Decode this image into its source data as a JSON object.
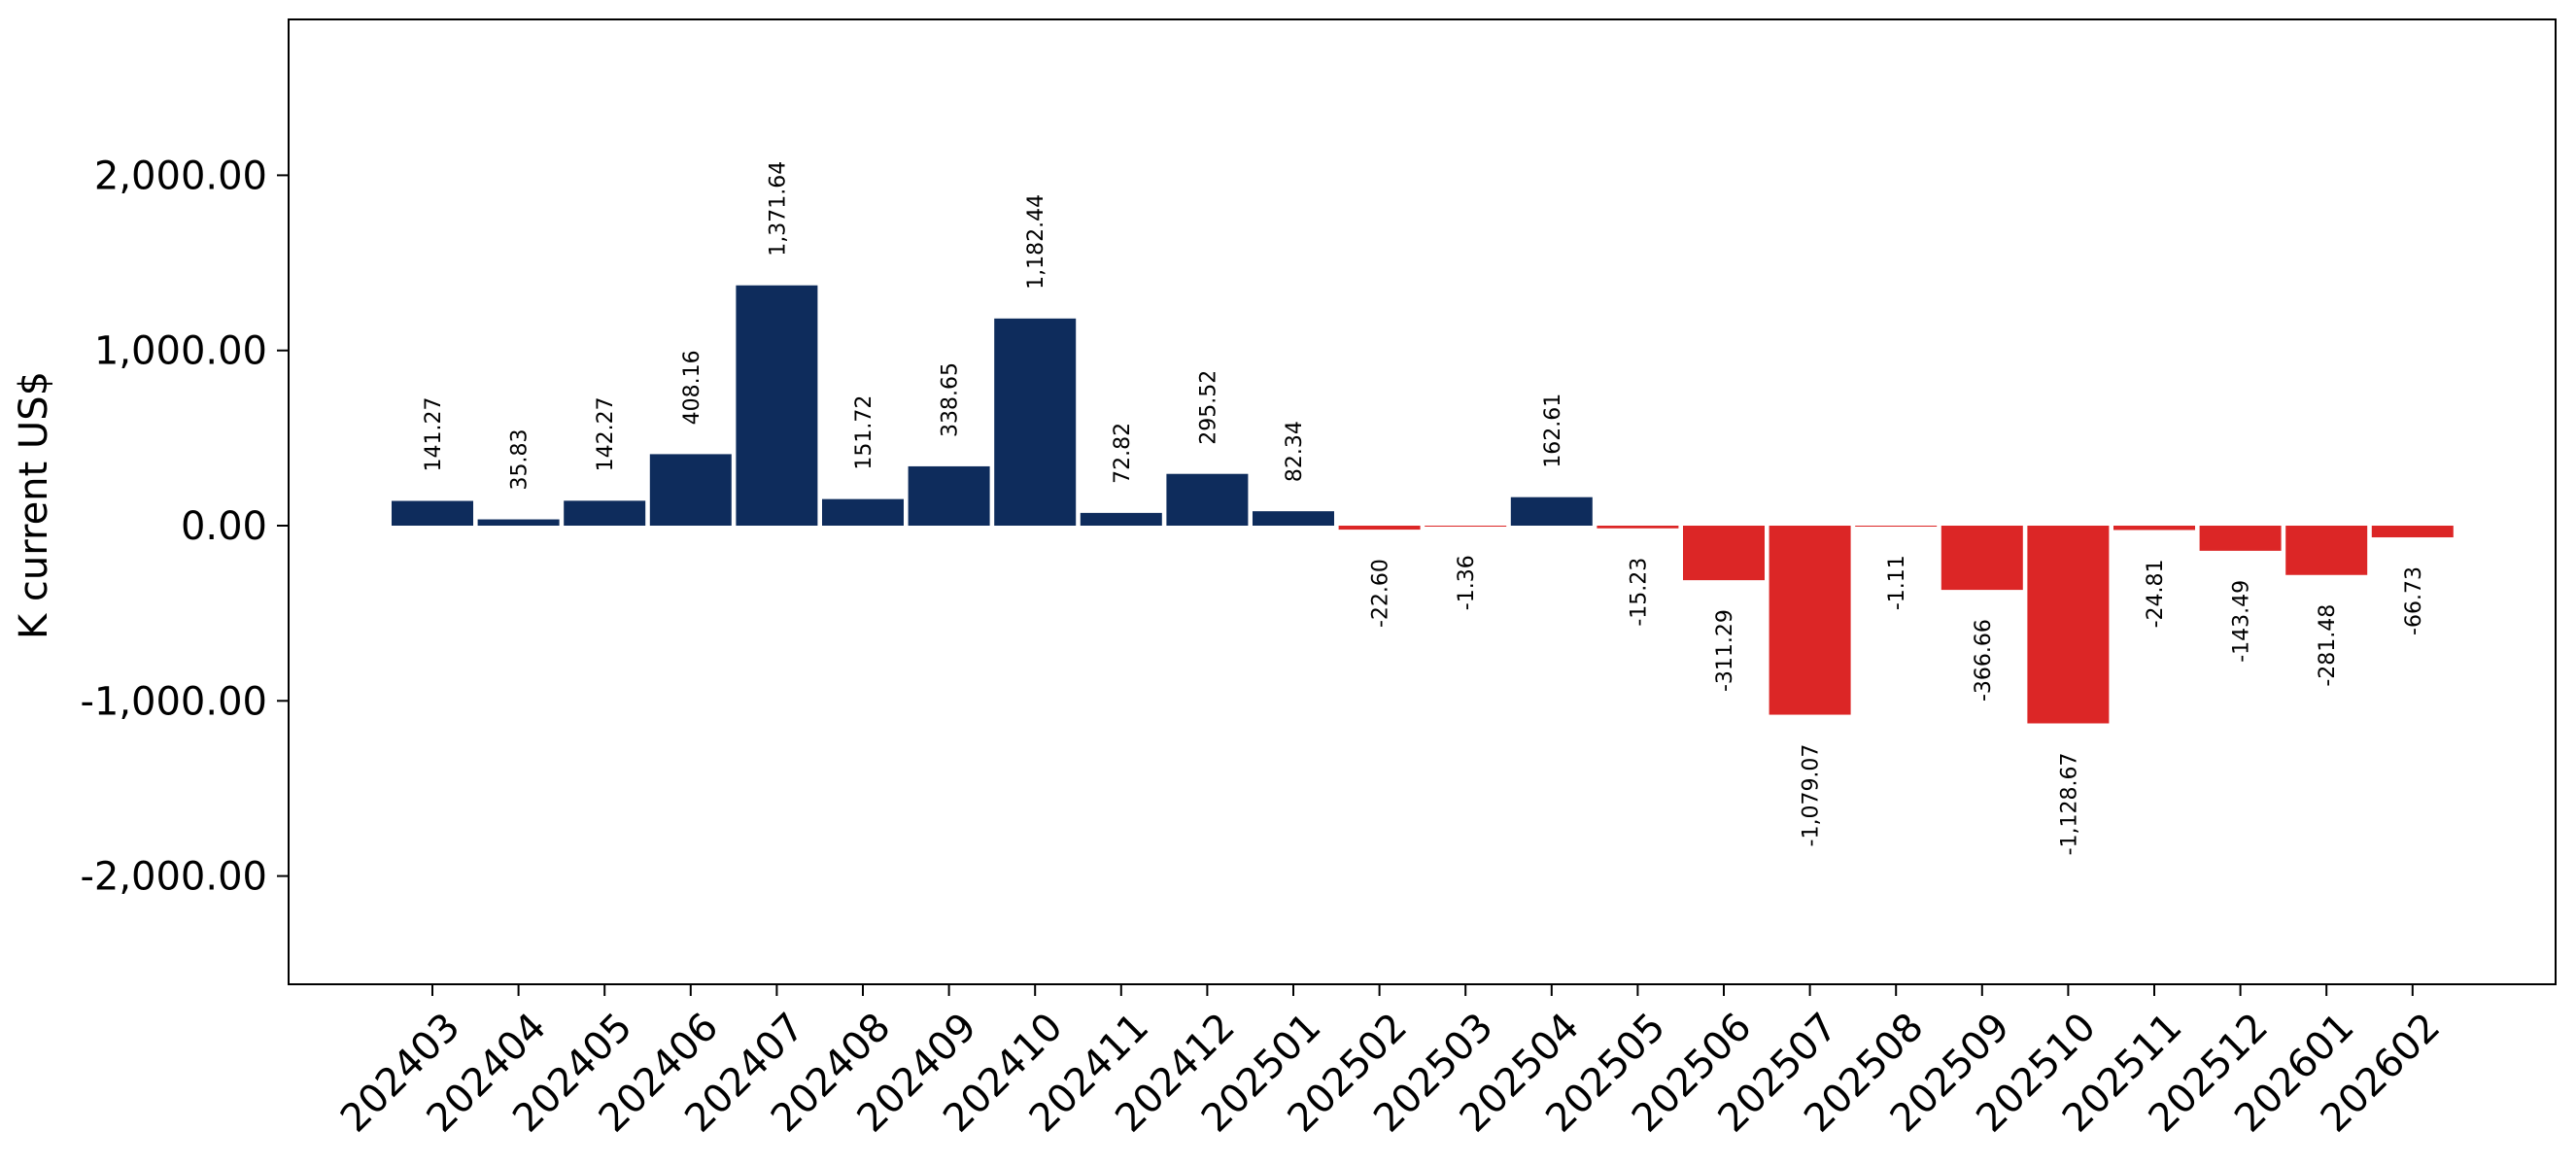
{
  "chart_data": {
    "type": "bar",
    "title": "",
    "xlabel": "",
    "ylabel": "K current US$",
    "categories": [
      "202403",
      "202404",
      "202405",
      "202406",
      "202407",
      "202408",
      "202409",
      "202410",
      "202411",
      "202412",
      "202501",
      "202502",
      "202503",
      "202504",
      "202505",
      "202506",
      "202507",
      "202508",
      "202509",
      "202510",
      "202511",
      "202512",
      "202601",
      "202602"
    ],
    "values": [
      141.27,
      35.83,
      142.27,
      408.16,
      1371.64,
      151.72,
      338.65,
      1182.44,
      72.82,
      295.52,
      82.34,
      -22.6,
      -1.36,
      162.61,
      -15.23,
      -311.29,
      -1079.07,
      -1.11,
      -366.66,
      -1128.67,
      -24.81,
      -143.49,
      -281.48,
      -66.73
    ],
    "value_labels": [
      "141.27",
      "35.83",
      "142.27",
      "408.16",
      "1,371.64",
      "151.72",
      "338.65",
      "1,182.44",
      "72.82",
      "295.52",
      "82.34",
      "-22.60",
      "-1.36",
      "162.61",
      "-15.23",
      "-311.29",
      "-1,079.07",
      "-1.11",
      "-366.66",
      "-1,128.67",
      "-24.81",
      "-143.49",
      "-281.48",
      "-66.73"
    ],
    "y_ticks": [
      2000,
      1000,
      0,
      -1000,
      -2000
    ],
    "y_tick_labels": [
      "2,000.00",
      "1,000.00",
      "0.00",
      "-1,000.00",
      "-2,000.00"
    ],
    "ylim": [
      -2630,
      2880
    ],
    "grid": false,
    "legend": "none",
    "colors": {
      "positive": "#0e2c5c",
      "negative": "#dc2626"
    }
  }
}
